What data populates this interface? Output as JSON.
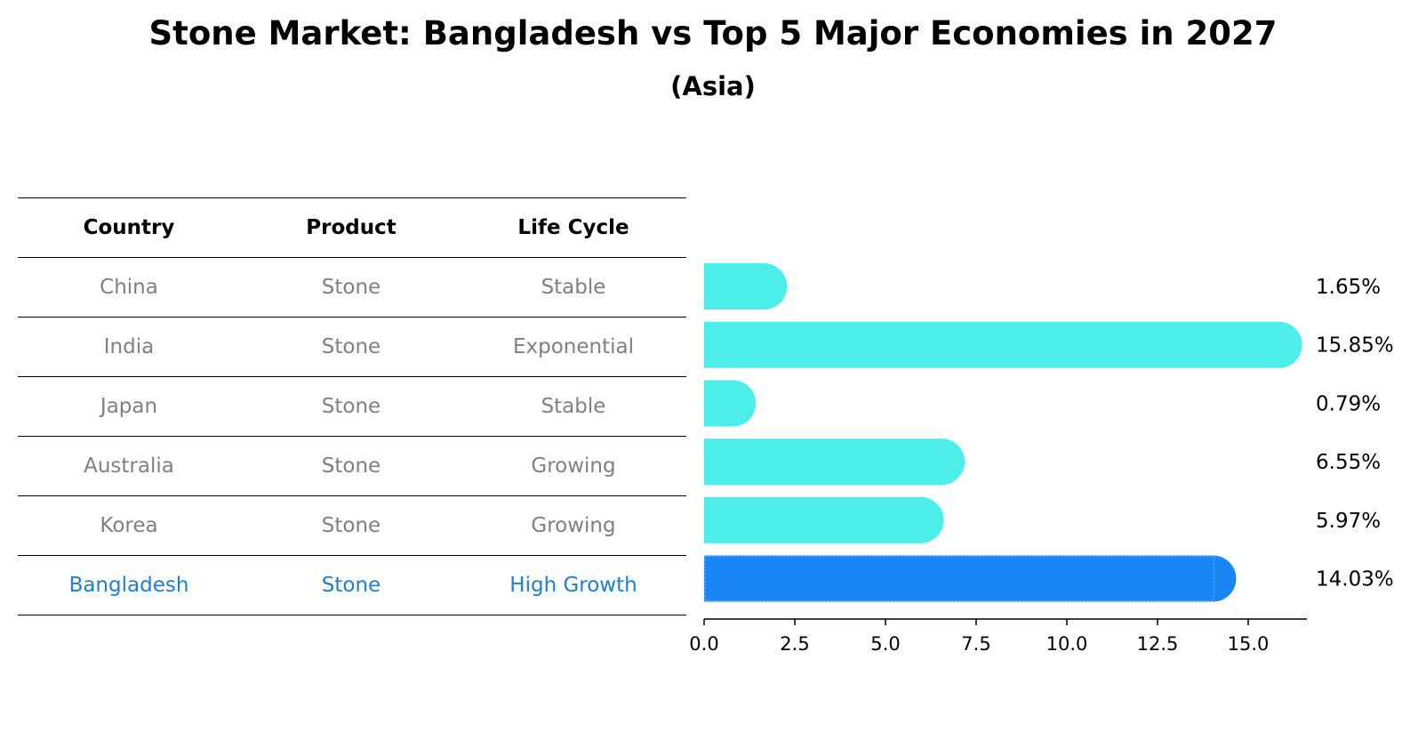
{
  "chart_data": {
    "type": "bar",
    "orientation": "horizontal",
    "title": "Stone Market: Bangladesh vs Top 5 Major Economies in 2027",
    "subtitle": "(Asia)",
    "table_headers": [
      "Country",
      "Product",
      "Life Cycle"
    ],
    "rows": [
      {
        "country": "China",
        "product": "Stone",
        "life_cycle": "Stable"
      },
      {
        "country": "India",
        "product": "Stone",
        "life_cycle": "Exponential"
      },
      {
        "country": "Japan",
        "product": "Stone",
        "life_cycle": "Stable"
      },
      {
        "country": "Australia",
        "product": "Stone",
        "life_cycle": "Growing"
      },
      {
        "country": "Korea",
        "product": "Stone",
        "life_cycle": "Growing"
      },
      {
        "country": "Bangladesh",
        "product": "Stone",
        "life_cycle": "High Growth"
      }
    ],
    "categories": [
      "China",
      "India",
      "Japan",
      "Australia",
      "Korea",
      "Bangladesh"
    ],
    "values": [
      1.65,
      15.85,
      0.79,
      6.55,
      5.97,
      14.03
    ],
    "value_labels": [
      "1.65%",
      "15.85%",
      "0.79%",
      "6.55%",
      "5.97%",
      "14.03%"
    ],
    "highlight": "Bangladesh",
    "xlim": [
      0,
      16.6
    ],
    "xticks": [
      0.0,
      2.5,
      5.0,
      7.5,
      10.0,
      12.5,
      15.0
    ],
    "xtick_labels": [
      "0.0",
      "2.5",
      "5.0",
      "7.5",
      "10.0",
      "12.5",
      "15.0"
    ],
    "xlabel": "",
    "ylabel": "",
    "grid": false,
    "colors": {
      "bar": "#4deeea",
      "highlight_bar": "#1a85f5",
      "highlight_text": "#1a7fd8",
      "muted_text": "#808080"
    }
  }
}
